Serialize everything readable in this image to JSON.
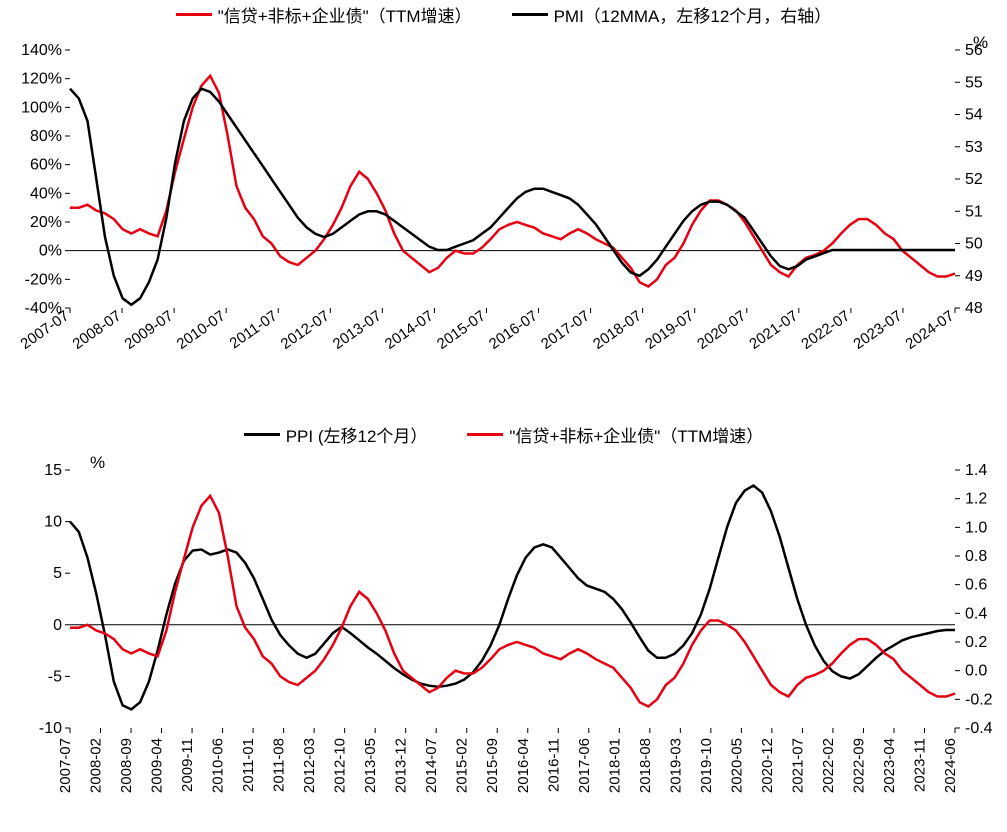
{
  "colors": {
    "red": "#e60012",
    "black": "#000000",
    "bg": "#ffffff"
  },
  "chart1": {
    "type": "line",
    "legend": [
      {
        "label": "\"信贷+非标+企业债\"（TTM增速）",
        "color": "#e60012"
      },
      {
        "label": "PMI（12MMA，左移12个月，右轴）",
        "color": "#000000"
      }
    ],
    "unit_right": "%",
    "left_axis": {
      "min": -40,
      "max": 140,
      "step": 20,
      "suffix": "%"
    },
    "right_axis": {
      "min": 48,
      "max": 56,
      "step": 1
    },
    "x_ticks": [
      "2007-07",
      "2008-07",
      "2009-07",
      "2010-07",
      "2011-07",
      "2012-07",
      "2013-07",
      "2014-07",
      "2015-07",
      "2016-07",
      "2017-07",
      "2018-07",
      "2019-07",
      "2020-07",
      "2021-07",
      "2022-07",
      "2023-07",
      "2024-07"
    ],
    "series_red": [
      30,
      30,
      32,
      28,
      26,
      22,
      15,
      12,
      15,
      12,
      10,
      28,
      55,
      78,
      100,
      115,
      122,
      110,
      80,
      45,
      30,
      22,
      10,
      5,
      -4,
      -8,
      -10,
      -5,
      0,
      8,
      18,
      30,
      45,
      55,
      50,
      40,
      28,
      12,
      0,
      -5,
      -10,
      -15,
      -12,
      -5,
      0,
      -2,
      -2,
      2,
      8,
      15,
      18,
      20,
      18,
      16,
      12,
      10,
      8,
      12,
      15,
      12,
      8,
      5,
      2,
      -5,
      -12,
      -22,
      -25,
      -20,
      -10,
      -5,
      5,
      18,
      28,
      35,
      35,
      32,
      28,
      20,
      10,
      0,
      -10,
      -15,
      -18,
      -10,
      -5,
      -3,
      0,
      5,
      12,
      18,
      22,
      22,
      18,
      12,
      8,
      0,
      -5,
      -10,
      -15,
      -18,
      -18,
      -16
    ],
    "series_black": [
      54.8,
      54.5,
      53.8,
      52.0,
      50.2,
      49.0,
      48.3,
      48.1,
      48.3,
      48.8,
      49.5,
      50.8,
      52.5,
      53.8,
      54.5,
      54.8,
      54.7,
      54.4,
      54.0,
      53.6,
      53.2,
      52.8,
      52.4,
      52.0,
      51.6,
      51.2,
      50.8,
      50.5,
      50.3,
      50.2,
      50.3,
      50.5,
      50.7,
      50.9,
      51.0,
      51.0,
      50.9,
      50.7,
      50.5,
      50.3,
      50.1,
      49.9,
      49.8,
      49.8,
      49.9,
      50.0,
      50.1,
      50.3,
      50.5,
      50.8,
      51.1,
      51.4,
      51.6,
      51.7,
      51.7,
      51.6,
      51.5,
      51.4,
      51.2,
      50.9,
      50.6,
      50.2,
      49.8,
      49.4,
      49.1,
      49.0,
      49.2,
      49.5,
      49.9,
      50.3,
      50.7,
      51.0,
      51.2,
      51.3,
      51.3,
      51.2,
      51.0,
      50.8,
      50.4,
      50.0,
      49.6,
      49.3,
      49.2,
      49.3,
      49.5,
      49.6,
      49.7,
      49.8,
      49.8,
      49.8,
      49.8,
      49.8,
      49.8,
      49.8,
      49.8,
      49.8,
      49.8,
      49.8,
      49.8,
      49.8,
      49.8,
      49.8
    ]
  },
  "chart2": {
    "type": "line",
    "legend": [
      {
        "label": "PPI (左移12个月）",
        "color": "#000000"
      },
      {
        "label": "\"信贷+非标+企业债\"（TTM增速）",
        "color": "#e60012"
      }
    ],
    "unit_left": "%",
    "left_axis": {
      "min": -10,
      "max": 15,
      "step": 5
    },
    "right_axis": {
      "min": -0.4,
      "max": 1.4,
      "step": 0.2
    },
    "x_ticks": [
      "2007-07",
      "2008-02",
      "2008-09",
      "2009-04",
      "2009-11",
      "2010-06",
      "2011-01",
      "2011-08",
      "2012-03",
      "2012-10",
      "2013-05",
      "2013-12",
      "2014-07",
      "2015-02",
      "2015-09",
      "2016-04",
      "2016-11",
      "2017-06",
      "2018-01",
      "2018-08",
      "2019-03",
      "2019-10",
      "2020-05",
      "2020-12",
      "2021-07",
      "2022-02",
      "2022-09",
      "2023-04",
      "2023-11",
      "2024-06"
    ],
    "series_black": [
      10.0,
      9.0,
      6.5,
      3.0,
      -1.0,
      -5.5,
      -7.8,
      -8.2,
      -7.5,
      -5.5,
      -2.5,
      1.0,
      4.0,
      6.2,
      7.2,
      7.3,
      6.8,
      7.0,
      7.3,
      7.0,
      6.0,
      4.5,
      2.5,
      0.5,
      -1.0,
      -2.0,
      -2.8,
      -3.2,
      -2.8,
      -1.8,
      -0.8,
      -0.2,
      -0.8,
      -1.5,
      -2.2,
      -2.8,
      -3.5,
      -4.2,
      -4.8,
      -5.3,
      -5.7,
      -5.9,
      -6.0,
      -5.9,
      -5.7,
      -5.3,
      -4.6,
      -3.5,
      -2.0,
      0.0,
      2.5,
      4.8,
      6.5,
      7.5,
      7.8,
      7.5,
      6.5,
      5.5,
      4.5,
      3.8,
      3.5,
      3.2,
      2.5,
      1.5,
      0.2,
      -1.2,
      -2.5,
      -3.2,
      -3.2,
      -2.8,
      -2.0,
      -0.8,
      1.0,
      3.5,
      6.5,
      9.5,
      11.8,
      13.0,
      13.5,
      12.8,
      11.0,
      8.5,
      5.5,
      2.5,
      0.0,
      -2.0,
      -3.5,
      -4.5,
      -5.0,
      -5.2,
      -4.8,
      -4.0,
      -3.2,
      -2.5,
      -2.0,
      -1.5,
      -1.2,
      -1.0,
      -0.8,
      -0.6,
      -0.5,
      -0.5
    ],
    "series_red": [
      0.3,
      0.3,
      0.32,
      0.28,
      0.26,
      0.22,
      0.15,
      0.12,
      0.15,
      0.12,
      0.1,
      0.28,
      0.55,
      0.78,
      1.0,
      1.15,
      1.22,
      1.1,
      0.8,
      0.45,
      0.3,
      0.22,
      0.1,
      0.05,
      -0.04,
      -0.08,
      -0.1,
      -0.05,
      0.0,
      0.08,
      0.18,
      0.3,
      0.45,
      0.55,
      0.5,
      0.4,
      0.28,
      0.12,
      0.0,
      -0.05,
      -0.1,
      -0.15,
      -0.12,
      -0.05,
      0.0,
      -0.02,
      -0.02,
      0.02,
      0.08,
      0.15,
      0.18,
      0.2,
      0.18,
      0.16,
      0.12,
      0.1,
      0.08,
      0.12,
      0.15,
      0.12,
      0.08,
      0.05,
      0.02,
      -0.05,
      -0.12,
      -0.22,
      -0.25,
      -0.2,
      -0.1,
      -0.05,
      0.05,
      0.18,
      0.28,
      0.35,
      0.35,
      0.32,
      0.28,
      0.2,
      0.1,
      0.0,
      -0.1,
      -0.15,
      -0.18,
      -0.1,
      -0.05,
      -0.03,
      0.0,
      0.05,
      0.12,
      0.18,
      0.22,
      0.22,
      0.18,
      0.12,
      0.08,
      0.0,
      -0.05,
      -0.1,
      -0.15,
      -0.18,
      -0.18,
      -0.16
    ],
    "series_red_scale": 0.01
  }
}
